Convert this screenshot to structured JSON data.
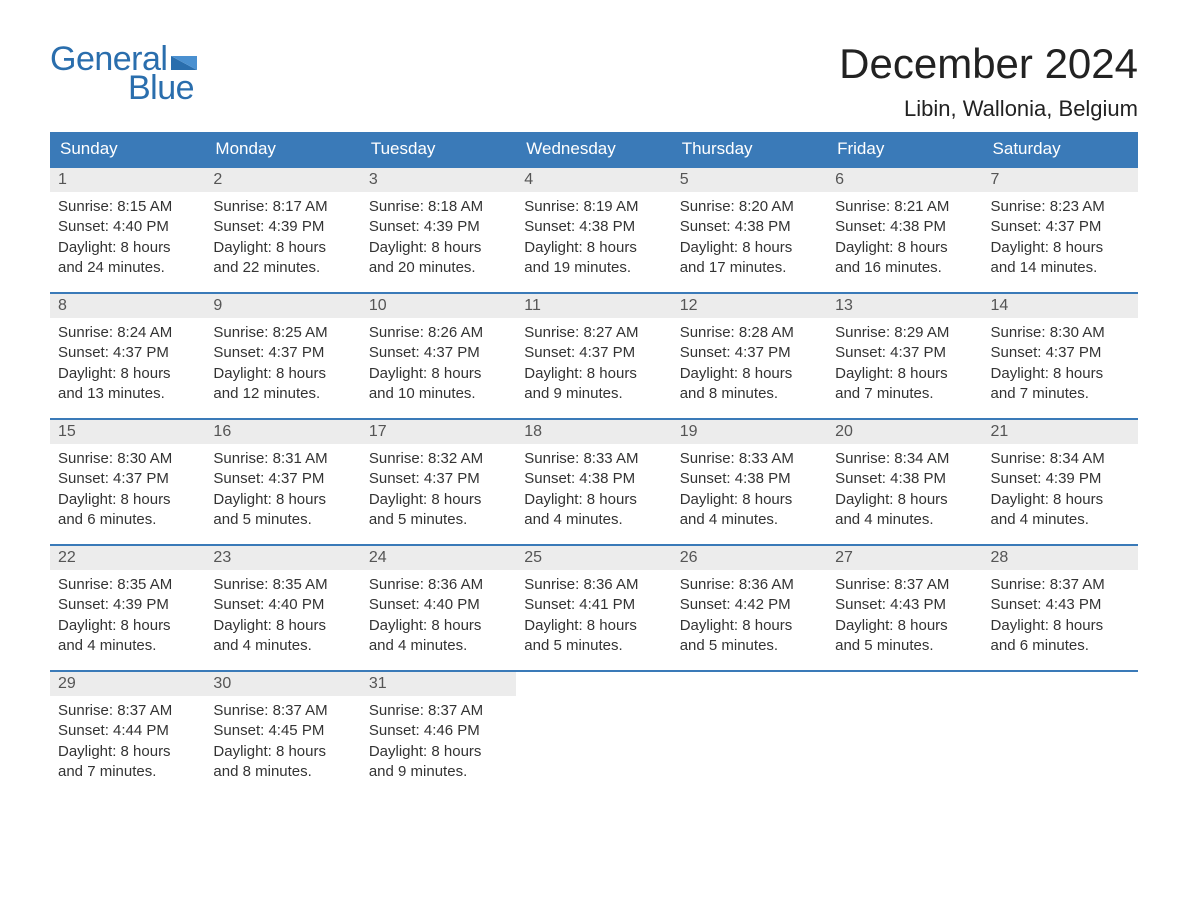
{
  "logo": {
    "general": "General",
    "blue": "Blue"
  },
  "title": "December 2024",
  "location": "Libin, Wallonia, Belgium",
  "colors": {
    "header_bg": "#3a7ab8",
    "header_text": "#ffffff",
    "daynum_bg": "#ececec",
    "logo_color": "#2a6ead",
    "week_border": "#3a7ab8"
  },
  "dayHeaders": [
    "Sunday",
    "Monday",
    "Tuesday",
    "Wednesday",
    "Thursday",
    "Friday",
    "Saturday"
  ],
  "weeks": [
    [
      {
        "num": "1",
        "sunrise": "Sunrise: 8:15 AM",
        "sunset": "Sunset: 4:40 PM",
        "day1": "Daylight: 8 hours",
        "day2": "and 24 minutes."
      },
      {
        "num": "2",
        "sunrise": "Sunrise: 8:17 AM",
        "sunset": "Sunset: 4:39 PM",
        "day1": "Daylight: 8 hours",
        "day2": "and 22 minutes."
      },
      {
        "num": "3",
        "sunrise": "Sunrise: 8:18 AM",
        "sunset": "Sunset: 4:39 PM",
        "day1": "Daylight: 8 hours",
        "day2": "and 20 minutes."
      },
      {
        "num": "4",
        "sunrise": "Sunrise: 8:19 AM",
        "sunset": "Sunset: 4:38 PM",
        "day1": "Daylight: 8 hours",
        "day2": "and 19 minutes."
      },
      {
        "num": "5",
        "sunrise": "Sunrise: 8:20 AM",
        "sunset": "Sunset: 4:38 PM",
        "day1": "Daylight: 8 hours",
        "day2": "and 17 minutes."
      },
      {
        "num": "6",
        "sunrise": "Sunrise: 8:21 AM",
        "sunset": "Sunset: 4:38 PM",
        "day1": "Daylight: 8 hours",
        "day2": "and 16 minutes."
      },
      {
        "num": "7",
        "sunrise": "Sunrise: 8:23 AM",
        "sunset": "Sunset: 4:37 PM",
        "day1": "Daylight: 8 hours",
        "day2": "and 14 minutes."
      }
    ],
    [
      {
        "num": "8",
        "sunrise": "Sunrise: 8:24 AM",
        "sunset": "Sunset: 4:37 PM",
        "day1": "Daylight: 8 hours",
        "day2": "and 13 minutes."
      },
      {
        "num": "9",
        "sunrise": "Sunrise: 8:25 AM",
        "sunset": "Sunset: 4:37 PM",
        "day1": "Daylight: 8 hours",
        "day2": "and 12 minutes."
      },
      {
        "num": "10",
        "sunrise": "Sunrise: 8:26 AM",
        "sunset": "Sunset: 4:37 PM",
        "day1": "Daylight: 8 hours",
        "day2": "and 10 minutes."
      },
      {
        "num": "11",
        "sunrise": "Sunrise: 8:27 AM",
        "sunset": "Sunset: 4:37 PM",
        "day1": "Daylight: 8 hours",
        "day2": "and 9 minutes."
      },
      {
        "num": "12",
        "sunrise": "Sunrise: 8:28 AM",
        "sunset": "Sunset: 4:37 PM",
        "day1": "Daylight: 8 hours",
        "day2": "and 8 minutes."
      },
      {
        "num": "13",
        "sunrise": "Sunrise: 8:29 AM",
        "sunset": "Sunset: 4:37 PM",
        "day1": "Daylight: 8 hours",
        "day2": "and 7 minutes."
      },
      {
        "num": "14",
        "sunrise": "Sunrise: 8:30 AM",
        "sunset": "Sunset: 4:37 PM",
        "day1": "Daylight: 8 hours",
        "day2": "and 7 minutes."
      }
    ],
    [
      {
        "num": "15",
        "sunrise": "Sunrise: 8:30 AM",
        "sunset": "Sunset: 4:37 PM",
        "day1": "Daylight: 8 hours",
        "day2": "and 6 minutes."
      },
      {
        "num": "16",
        "sunrise": "Sunrise: 8:31 AM",
        "sunset": "Sunset: 4:37 PM",
        "day1": "Daylight: 8 hours",
        "day2": "and 5 minutes."
      },
      {
        "num": "17",
        "sunrise": "Sunrise: 8:32 AM",
        "sunset": "Sunset: 4:37 PM",
        "day1": "Daylight: 8 hours",
        "day2": "and 5 minutes."
      },
      {
        "num": "18",
        "sunrise": "Sunrise: 8:33 AM",
        "sunset": "Sunset: 4:38 PM",
        "day1": "Daylight: 8 hours",
        "day2": "and 4 minutes."
      },
      {
        "num": "19",
        "sunrise": "Sunrise: 8:33 AM",
        "sunset": "Sunset: 4:38 PM",
        "day1": "Daylight: 8 hours",
        "day2": "and 4 minutes."
      },
      {
        "num": "20",
        "sunrise": "Sunrise: 8:34 AM",
        "sunset": "Sunset: 4:38 PM",
        "day1": "Daylight: 8 hours",
        "day2": "and 4 minutes."
      },
      {
        "num": "21",
        "sunrise": "Sunrise: 8:34 AM",
        "sunset": "Sunset: 4:39 PM",
        "day1": "Daylight: 8 hours",
        "day2": "and 4 minutes."
      }
    ],
    [
      {
        "num": "22",
        "sunrise": "Sunrise: 8:35 AM",
        "sunset": "Sunset: 4:39 PM",
        "day1": "Daylight: 8 hours",
        "day2": "and 4 minutes."
      },
      {
        "num": "23",
        "sunrise": "Sunrise: 8:35 AM",
        "sunset": "Sunset: 4:40 PM",
        "day1": "Daylight: 8 hours",
        "day2": "and 4 minutes."
      },
      {
        "num": "24",
        "sunrise": "Sunrise: 8:36 AM",
        "sunset": "Sunset: 4:40 PM",
        "day1": "Daylight: 8 hours",
        "day2": "and 4 minutes."
      },
      {
        "num": "25",
        "sunrise": "Sunrise: 8:36 AM",
        "sunset": "Sunset: 4:41 PM",
        "day1": "Daylight: 8 hours",
        "day2": "and 5 minutes."
      },
      {
        "num": "26",
        "sunrise": "Sunrise: 8:36 AM",
        "sunset": "Sunset: 4:42 PM",
        "day1": "Daylight: 8 hours",
        "day2": "and 5 minutes."
      },
      {
        "num": "27",
        "sunrise": "Sunrise: 8:37 AM",
        "sunset": "Sunset: 4:43 PM",
        "day1": "Daylight: 8 hours",
        "day2": "and 5 minutes."
      },
      {
        "num": "28",
        "sunrise": "Sunrise: 8:37 AM",
        "sunset": "Sunset: 4:43 PM",
        "day1": "Daylight: 8 hours",
        "day2": "and 6 minutes."
      }
    ],
    [
      {
        "num": "29",
        "sunrise": "Sunrise: 8:37 AM",
        "sunset": "Sunset: 4:44 PM",
        "day1": "Daylight: 8 hours",
        "day2": "and 7 minutes."
      },
      {
        "num": "30",
        "sunrise": "Sunrise: 8:37 AM",
        "sunset": "Sunset: 4:45 PM",
        "day1": "Daylight: 8 hours",
        "day2": "and 8 minutes."
      },
      {
        "num": "31",
        "sunrise": "Sunrise: 8:37 AM",
        "sunset": "Sunset: 4:46 PM",
        "day1": "Daylight: 8 hours",
        "day2": "and 9 minutes."
      },
      {
        "empty": true
      },
      {
        "empty": true
      },
      {
        "empty": true
      },
      {
        "empty": true
      }
    ]
  ]
}
